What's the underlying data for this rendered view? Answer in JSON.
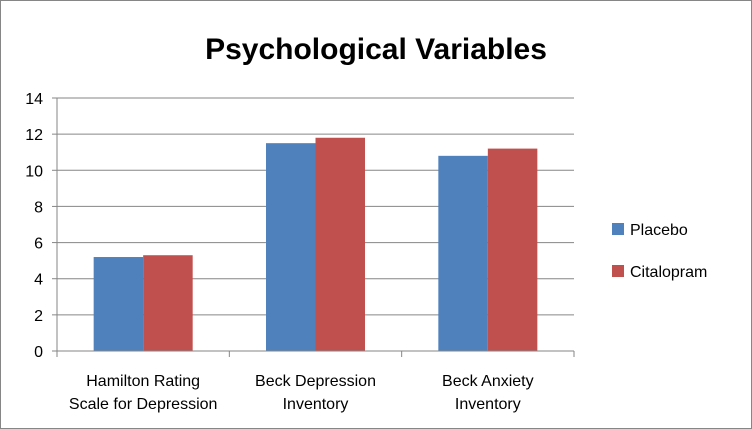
{
  "chart_data": {
    "type": "bar",
    "title": "Psychological Variables",
    "xlabel": "",
    "ylabel": "",
    "categories": [
      [
        "Hamilton Rating",
        "Scale for Depression"
      ],
      [
        "Beck Depression",
        "Inventory"
      ],
      [
        "Beck Anxiety",
        "Inventory"
      ]
    ],
    "series": [
      {
        "name": "Placebo",
        "values": [
          5.2,
          11.5,
          10.8
        ],
        "color": "#4F81BD"
      },
      {
        "name": "Citalopram",
        "values": [
          5.3,
          11.8,
          11.2
        ],
        "color": "#C0504D"
      }
    ],
    "ylim": [
      0,
      14
    ],
    "yticks": [
      0,
      2,
      4,
      6,
      8,
      10,
      12,
      14
    ],
    "grid": true,
    "legend_position": "right"
  }
}
